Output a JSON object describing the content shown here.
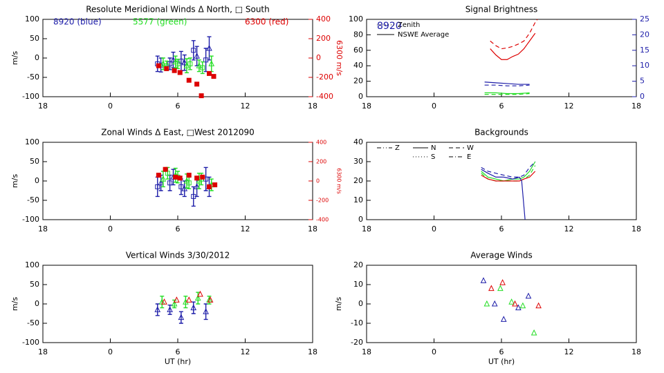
{
  "chart_data": [
    {
      "type": "errorbar",
      "title": "Resolute Meridional Winds Δ North, □ South",
      "ylabel": "m/s",
      "y2label": "6300 m/s",
      "y2color": "#dd0000",
      "xlim": [
        -6,
        18
      ],
      "xticks": [
        {
          "value": -6,
          "label": "18"
        },
        0,
        6,
        12,
        18
      ],
      "ylim": [
        -100,
        100
      ],
      "yticks": [
        -100,
        -50,
        0,
        50,
        100
      ],
      "y2lim": [
        -400,
        400
      ],
      "y2ticks": [
        -400,
        -200,
        0,
        200,
        400
      ],
      "annotations": [
        {
          "text": "8920 (blue)",
          "color": "#1c1ca8"
        },
        {
          "text": "5577 (green)",
          "color": "#22dd22"
        },
        {
          "text": "6300 (red)",
          "color": "#dd0000"
        }
      ],
      "series": [
        {
          "color": "#1c1ca8",
          "marker": "square",
          "x": [
            4.2,
            5.3,
            6.3,
            7.4,
            8.5
          ],
          "values": [
            -15,
            -15,
            -8,
            20,
            -5
          ],
          "errors": [
            20,
            15,
            25,
            25,
            30
          ]
        },
        {
          "color": "#1c1ca8",
          "marker": "triangle",
          "x": [
            4.5,
            5.6,
            6.6,
            7.7,
            8.8
          ],
          "values": [
            -18,
            -5,
            -12,
            5,
            25
          ],
          "errors": [
            18,
            20,
            20,
            25,
            30
          ]
        },
        {
          "color": "#22dd22",
          "marker": "triangle",
          "x": [
            4.7,
            5.8,
            6.8,
            7.9,
            9.0
          ],
          "values": [
            -15,
            -10,
            -20,
            -20,
            -15
          ],
          "errors": [
            15,
            15,
            18,
            15,
            20
          ]
        },
        {
          "color": "#22dd22",
          "marker": "square",
          "x": [
            5.0,
            6.0,
            7.1,
            8.2
          ],
          "values": [
            -20,
            -15,
            -15,
            -25
          ],
          "errors": [
            12,
            12,
            15,
            15
          ]
        },
        {
          "color": "#dd0000",
          "marker": "square",
          "axis": "y2",
          "x": [
            4.3,
            5.0,
            5.7,
            6.2,
            7.0,
            7.7,
            8.1,
            8.8,
            9.2
          ],
          "values": [
            -80,
            -110,
            -130,
            -150,
            -230,
            -270,
            -390,
            -160,
            -190
          ]
        }
      ]
    },
    {
      "type": "line",
      "title": "Signal Brightness",
      "y2color": "#1c1ca8",
      "xlim": [
        -6,
        18
      ],
      "xticks": [
        {
          "value": -6,
          "label": "18"
        },
        0,
        6,
        12,
        18
      ],
      "ylim": [
        0,
        100
      ],
      "yticks": [
        0,
        20,
        40,
        60,
        80,
        100
      ],
      "y2lim": [
        0,
        25
      ],
      "y2ticks": [
        0,
        5,
        10,
        15,
        20,
        25
      ],
      "annotations": [
        {
          "text": "8920",
          "color": "#1c1ca8"
        }
      ],
      "legend": [
        {
          "name": "Zenith",
          "dash": "dotted"
        },
        {
          "name": "NSWE Average",
          "dash": "solid"
        }
      ],
      "series": [
        {
          "color": "#dd0000",
          "dash": "dashed",
          "x": [
            5,
            5.5,
            6,
            6.5,
            7,
            7.5,
            8,
            8.5,
            9,
            9.2
          ],
          "values": [
            72,
            66,
            62,
            63,
            65,
            68,
            72,
            82,
            96,
            100
          ]
        },
        {
          "color": "#dd0000",
          "dash": "solid",
          "x": [
            5,
            5.5,
            6,
            6.5,
            7,
            7.5,
            8,
            8.5,
            9
          ],
          "values": [
            62,
            54,
            48,
            48,
            52,
            55,
            62,
            72,
            82
          ]
        },
        {
          "color": "#1c1ca8",
          "dash": "solid",
          "x": [
            4.5,
            5.5,
            6.5,
            7.5,
            8.5
          ],
          "values": [
            19,
            18,
            17,
            16,
            16
          ]
        },
        {
          "color": "#1c1ca8",
          "dash": "dashed",
          "x": [
            4.5,
            5.5,
            6.5,
            7.5,
            8.5
          ],
          "values": [
            15,
            15,
            14,
            14,
            15
          ]
        },
        {
          "color": "#22dd22",
          "dash": "solid",
          "x": [
            4.5,
            5.5,
            6.5,
            7.5,
            8.5
          ],
          "values": [
            5,
            5,
            4,
            4,
            5
          ]
        },
        {
          "color": "#22dd22",
          "dash": "dashed",
          "x": [
            4.5,
            5.5,
            6.5,
            7.5,
            8.5
          ],
          "values": [
            3,
            3,
            3,
            3,
            4
          ]
        }
      ]
    },
    {
      "type": "errorbar",
      "title": "Zonal Winds Δ East, □West 2012090",
      "ylabel": "m/s",
      "y2label": "6300 m/s",
      "y2color": "#dd0000",
      "xlim": [
        -6,
        18
      ],
      "xticks": [
        {
          "value": -6,
          "label": "18"
        },
        0,
        6,
        12,
        18
      ],
      "ylim": [
        -100,
        100
      ],
      "yticks": [
        -100,
        -50,
        0,
        50,
        100
      ],
      "y2lim": [
        -400,
        400
      ],
      "y2ticks": [
        -400,
        -200,
        0,
        200,
        400
      ],
      "series": [
        {
          "color": "#1c1ca8",
          "marker": "square",
          "x": [
            4.2,
            5.3,
            6.3,
            7.4,
            8.5
          ],
          "values": [
            -15,
            -5,
            -15,
            -40,
            5
          ],
          "errors": [
            25,
            20,
            20,
            25,
            30
          ]
        },
        {
          "color": "#1c1ca8",
          "marker": "triangle",
          "x": [
            4.5,
            5.6,
            6.6,
            7.7,
            8.8
          ],
          "values": [
            -5,
            10,
            -20,
            -15,
            -15
          ],
          "errors": [
            20,
            20,
            20,
            25,
            25
          ]
        },
        {
          "color": "#22dd22",
          "marker": "triangle",
          "x": [
            4.7,
            5.8,
            6.8,
            7.9,
            9.0
          ],
          "values": [
            5,
            15,
            0,
            0,
            -10
          ],
          "errors": [
            20,
            18,
            18,
            20,
            15
          ]
        },
        {
          "color": "#22dd22",
          "marker": "square",
          "x": [
            5.1,
            6.0,
            7.0,
            8.1
          ],
          "values": [
            20,
            10,
            -5,
            5
          ],
          "errors": [
            15,
            15,
            15,
            15
          ]
        },
        {
          "color": "#dd0000",
          "marker": "square",
          "axis": "y2",
          "x": [
            4.3,
            4.9,
            5.8,
            6.2,
            7.0,
            7.7,
            8.2,
            8.8,
            9.3
          ],
          "values": [
            60,
            120,
            40,
            30,
            60,
            30,
            40,
            -60,
            -40
          ]
        }
      ]
    },
    {
      "type": "line",
      "title": "Backgrounds",
      "xlim": [
        -6,
        18
      ],
      "xticks": [
        {
          "value": -6,
          "label": "18"
        },
        0,
        6,
        12,
        18
      ],
      "ylim": [
        0,
        40
      ],
      "yticks": [
        0,
        10,
        20,
        30,
        40
      ],
      "legend": [
        {
          "name": "Z",
          "dash": "dashdotdot"
        },
        {
          "name": "N",
          "dash": "solid"
        },
        {
          "name": "W",
          "dash": "dashed"
        },
        {
          "name": "S",
          "dash": "dotted"
        },
        {
          "name": "E",
          "dash": "dashdot"
        }
      ],
      "series": [
        {
          "color": "#22dd22",
          "dash": "solid",
          "x": [
            4.2,
            4.8,
            5.5,
            6.2,
            7,
            7.6,
            8,
            8.5,
            9
          ],
          "values": [
            25,
            22,
            21,
            20,
            21,
            21,
            22,
            25,
            30
          ]
        },
        {
          "color": "#22dd22",
          "dash": "dashed",
          "x": [
            4.2,
            4.8,
            5.5,
            6.2,
            7,
            7.6,
            8,
            8.5,
            9
          ],
          "values": [
            24,
            21,
            20,
            20,
            20,
            20,
            21,
            23,
            28
          ]
        },
        {
          "color": "#dd0000",
          "dash": "solid",
          "x": [
            4.2,
            4.8,
            5.5,
            6.2,
            7,
            7.6,
            8,
            8.5,
            9
          ],
          "values": [
            23,
            21,
            20,
            20,
            20,
            20,
            21,
            22,
            25
          ]
        },
        {
          "color": "#1c1ca8",
          "dash": "solid",
          "x": [
            4.2,
            4.8,
            5.5,
            6.2,
            7,
            7.6,
            7.8,
            8.1
          ],
          "values": [
            26,
            24,
            22,
            22,
            21,
            22,
            20,
            0
          ]
        },
        {
          "color": "#1c1ca8",
          "dash": "dashed",
          "x": [
            4.2,
            4.8,
            5.5,
            6.2,
            7,
            7.6,
            8,
            8.5,
            9
          ],
          "values": [
            27,
            25,
            24,
            23,
            22,
            22,
            23,
            27,
            30
          ]
        }
      ]
    },
    {
      "type": "errorbar",
      "title": "Vertical Winds 3/30/2012",
      "ylabel": "m/s",
      "xlabel": "UT (hr)",
      "xlim": [
        -6,
        18
      ],
      "xticks": [
        {
          "value": -6,
          "label": "18"
        },
        0,
        6,
        12,
        18
      ],
      "ylim": [
        -100,
        100
      ],
      "yticks": [
        -100,
        -50,
        0,
        50,
        100
      ],
      "series": [
        {
          "color": "#1c1ca8",
          "marker": "triangle",
          "x": [
            4.2,
            5.3,
            6.3,
            7.4,
            8.5
          ],
          "values": [
            -15,
            -15,
            -35,
            -10,
            -20
          ],
          "errors": [
            15,
            12,
            15,
            15,
            20
          ]
        },
        {
          "color": "#22dd22",
          "marker": "triangle",
          "x": [
            4.6,
            5.7,
            6.7,
            7.8,
            8.8
          ],
          "values": [
            5,
            0,
            5,
            15,
            10
          ],
          "errors": [
            15,
            10,
            15,
            15,
            10
          ]
        },
        {
          "color": "#dd0000",
          "marker": "triangle",
          "x": [
            4.8,
            5.9,
            7.0,
            8.0,
            8.9
          ],
          "values": [
            5,
            10,
            10,
            25,
            10
          ]
        }
      ]
    },
    {
      "type": "scatter",
      "title": "Average Winds",
      "ylabel": "m/s",
      "xlabel": "UT (hr)",
      "xlim": [
        -6,
        18
      ],
      "xticks": [
        {
          "value": -6,
          "label": "18"
        },
        0,
        6,
        12,
        18
      ],
      "ylim": [
        -20,
        20
      ],
      "yticks": [
        -20,
        -10,
        0,
        10,
        20
      ],
      "series": [
        {
          "color": "#1c1ca8",
          "marker": "triangle",
          "x": [
            4.4,
            5.4,
            6.2,
            7.5,
            8.4
          ],
          "values": [
            12,
            0,
            -8,
            -2,
            4
          ]
        },
        {
          "color": "#22dd22",
          "marker": "triangle",
          "x": [
            4.7,
            5.9,
            6.9,
            7.9,
            8.9
          ],
          "values": [
            0,
            8,
            1,
            -1,
            -15
          ]
        },
        {
          "color": "#dd0000",
          "marker": "triangle",
          "x": [
            5.1,
            6.1,
            7.2,
            9.3
          ],
          "values": [
            8,
            11,
            0,
            -1
          ]
        }
      ]
    }
  ]
}
